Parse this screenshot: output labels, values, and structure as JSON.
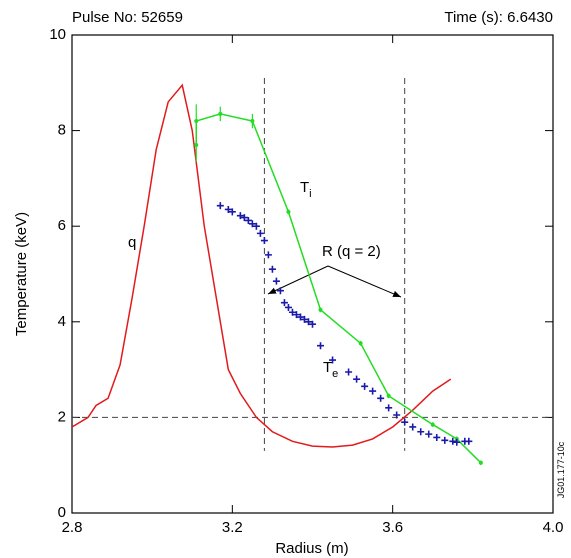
{
  "chart_data": {
    "type": "line",
    "title_left": "Pulse No: 52659",
    "title_right": "Time (s): 6.6430",
    "xlabel": "Radius (m)",
    "ylabel": "Temperature (keV)",
    "xlim": [
      2.8,
      4.0
    ],
    "ylim": [
      0,
      10
    ],
    "xticks": [
      2.8,
      3.2,
      3.6,
      {
        "value": 4,
        "label": "4.0"
      }
    ],
    "yticks": [
      0,
      2,
      4,
      6,
      8,
      10
    ],
    "hlines": [
      2
    ],
    "vlines": [
      3.28,
      3.63
    ],
    "series": [
      {
        "style": "line",
        "color": "#e31a1c",
        "x": [
          2.8,
          2.84,
          2.86,
          2.89,
          2.92,
          2.95,
          2.98,
          3.01,
          3.04,
          3.075,
          3.1,
          3.13,
          3.16,
          3.19,
          3.22,
          3.26,
          3.3,
          3.35,
          3.4,
          3.45,
          3.5,
          3.55,
          3.6,
          3.65,
          3.7,
          3.745
        ],
        "values": [
          1.8,
          2.0,
          2.25,
          2.4,
          3.1,
          4.5,
          6.0,
          7.6,
          8.6,
          8.95,
          8.0,
          6.0,
          4.5,
          3.0,
          2.5,
          2.0,
          1.7,
          1.5,
          1.4,
          1.38,
          1.42,
          1.55,
          1.8,
          2.15,
          2.55,
          2.8
        ]
      },
      {
        "style": "errorline",
        "color": "#22dd22",
        "x": [
          3.11,
          3.11,
          3.17,
          3.25,
          3.34,
          3.42,
          3.52,
          3.59,
          3.7,
          3.76,
          3.82
        ],
        "values": [
          7.7,
          8.2,
          8.35,
          8.2,
          6.3,
          4.25,
          3.55,
          2.45,
          1.85,
          1.55,
          1.05
        ],
        "errors": [
          0.35,
          0.35,
          0.15,
          0.15,
          0.05,
          0.05,
          0.05,
          0.05,
          0.05,
          0.05,
          0.05
        ]
      },
      {
        "style": "cross",
        "color": "#1a1aaa",
        "x": [
          3.17,
          3.19,
          3.2,
          3.22,
          3.23,
          3.24,
          3.25,
          3.26,
          3.27,
          3.28,
          3.29,
          3.3,
          3.31,
          3.32,
          3.33,
          3.34,
          3.35,
          3.36,
          3.37,
          3.38,
          3.39,
          3.4,
          3.42,
          3.45,
          3.49,
          3.51,
          3.53,
          3.55,
          3.57,
          3.59,
          3.61,
          3.63,
          3.65,
          3.67,
          3.69,
          3.71,
          3.73,
          3.75,
          3.76,
          3.78,
          3.79
        ],
        "values": [
          6.43,
          6.35,
          6.3,
          6.22,
          6.18,
          6.12,
          6.05,
          6.0,
          5.85,
          5.7,
          5.4,
          5.1,
          4.85,
          4.65,
          4.4,
          4.3,
          4.2,
          4.15,
          4.1,
          4.05,
          4.0,
          3.95,
          3.5,
          3.2,
          2.95,
          2.8,
          2.65,
          2.55,
          2.4,
          2.2,
          2.05,
          1.9,
          1.8,
          1.7,
          1.65,
          1.58,
          1.52,
          1.5,
          1.48,
          1.5,
          1.5
        ]
      }
    ],
    "annotations": [
      {
        "text": "q"
      },
      {
        "text": "T",
        "subscript": "i"
      },
      {
        "text": "T",
        "subscript": "e"
      },
      {
        "text": "R (q = 2)"
      },
      {
        "text": "JG01.177-10c"
      }
    ]
  }
}
